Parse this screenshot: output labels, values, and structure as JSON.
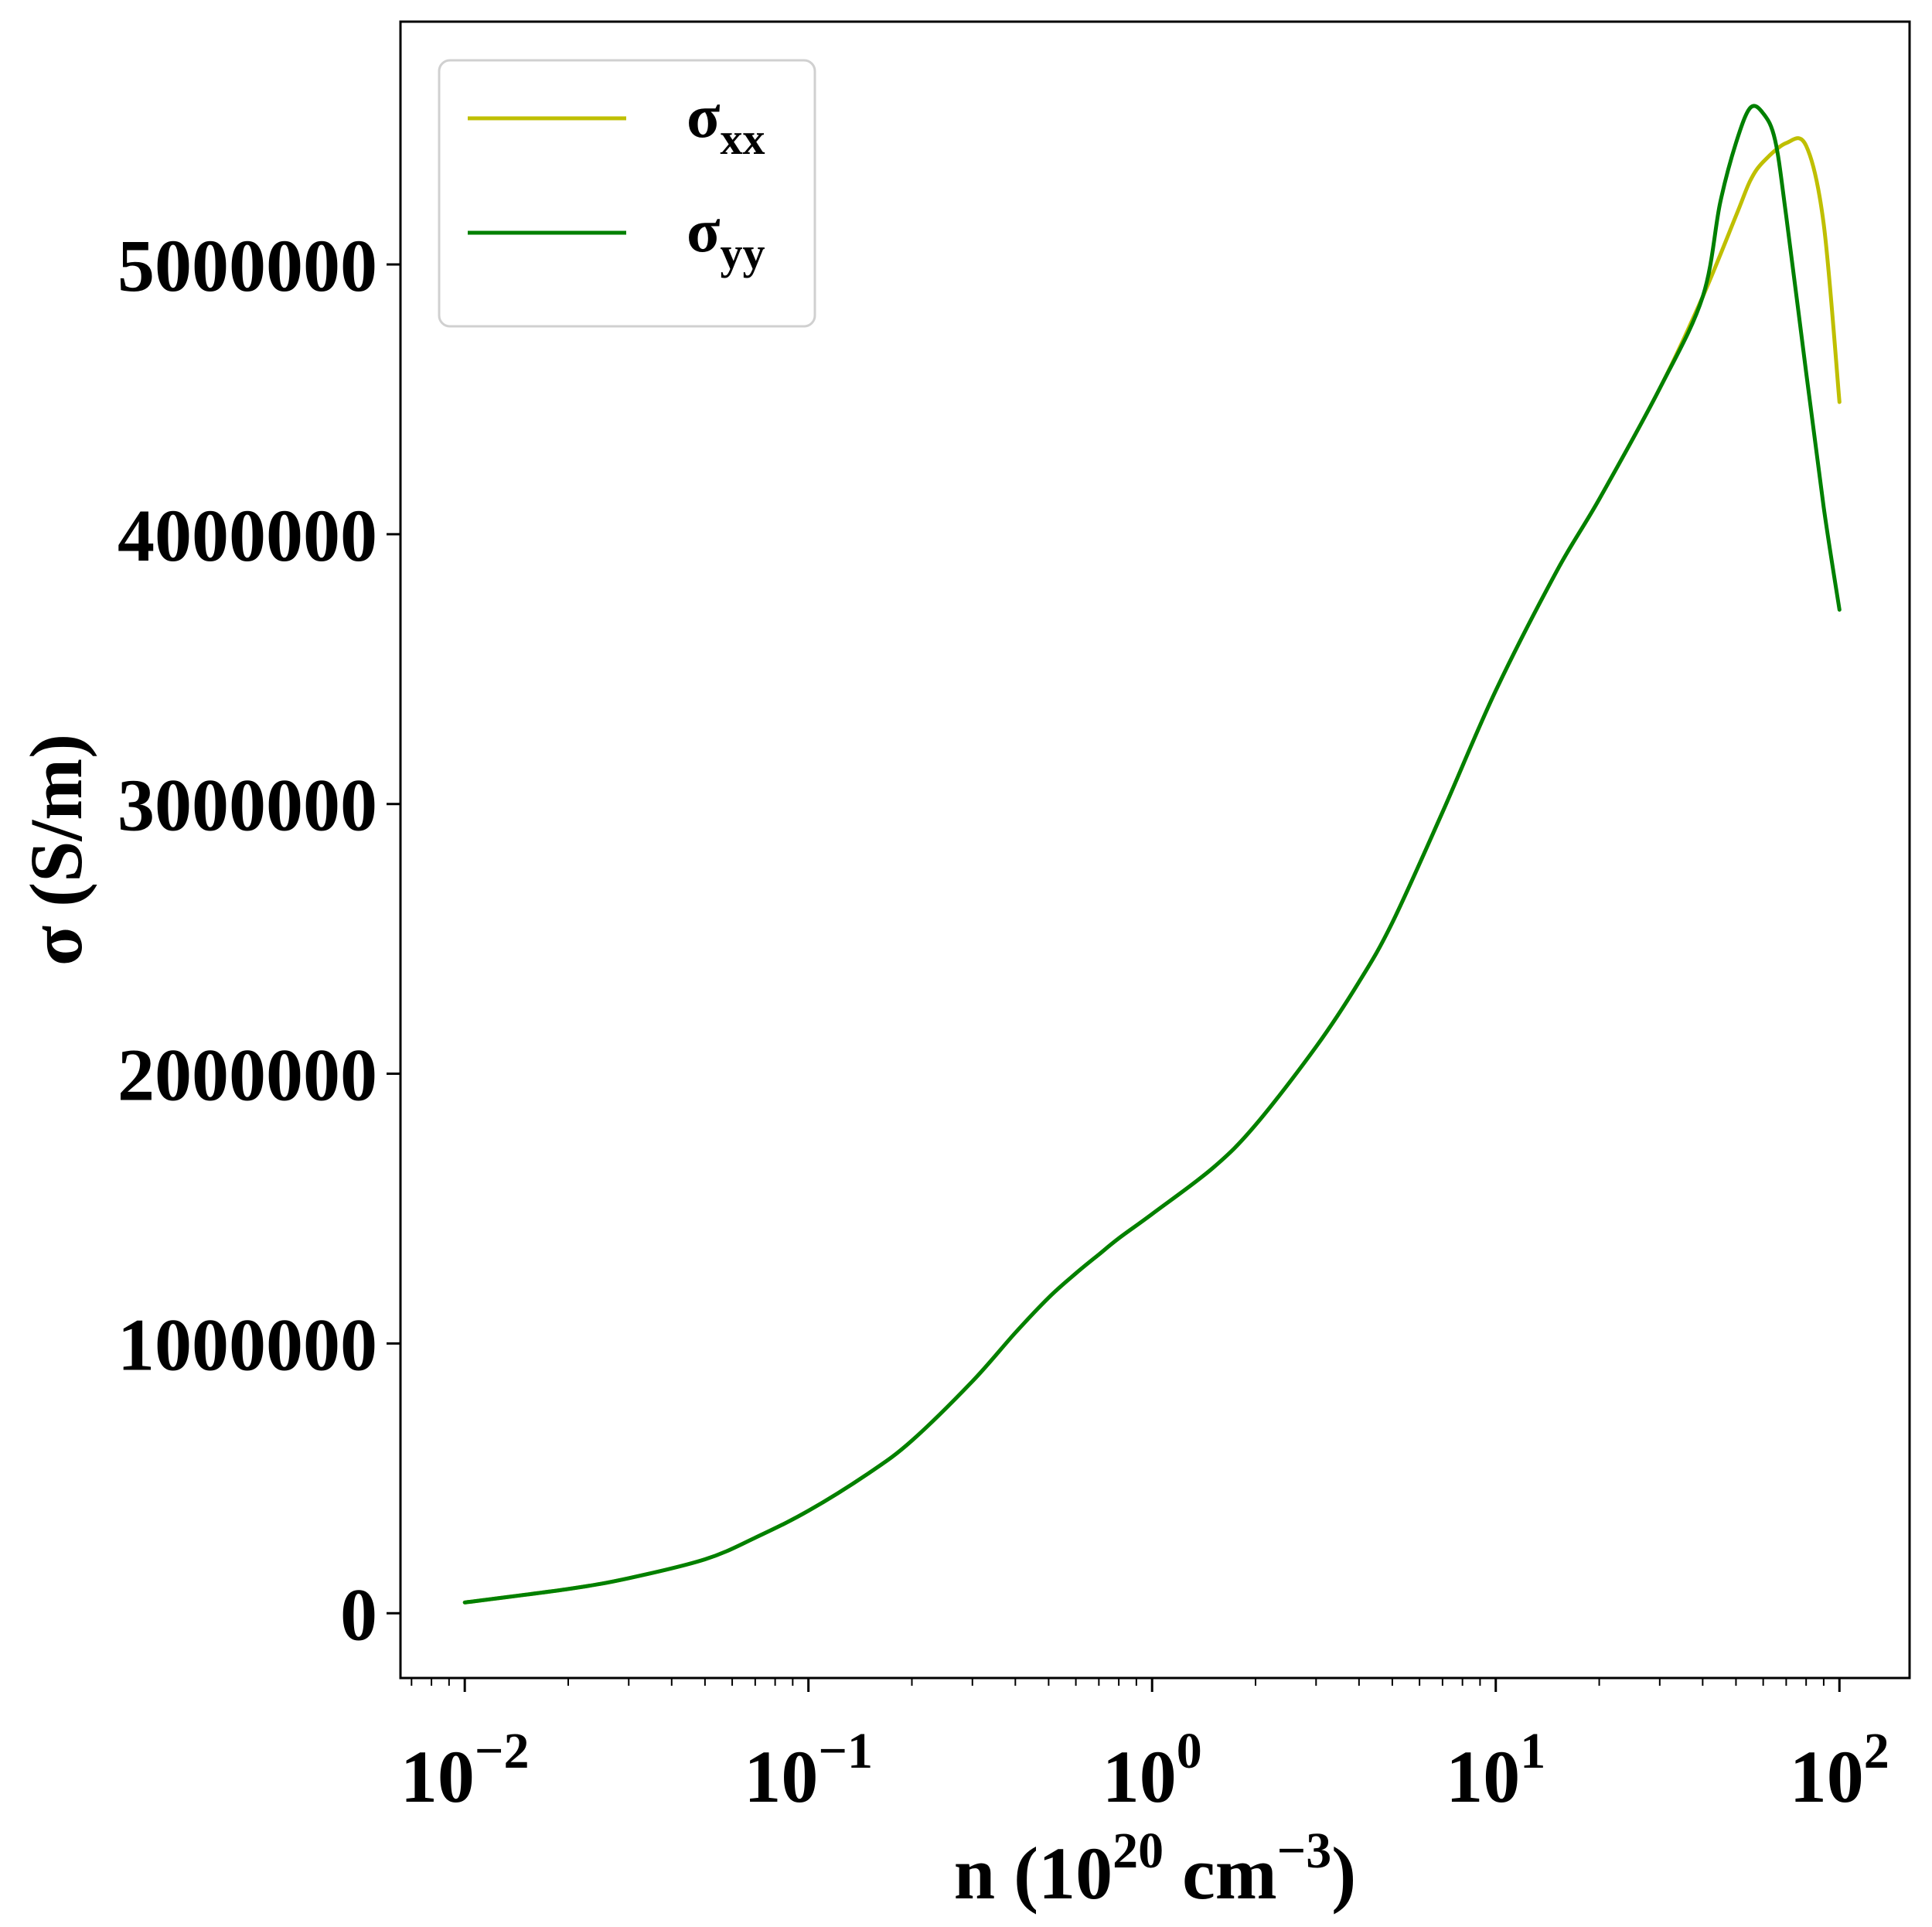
{
  "chart_data": {
    "type": "line",
    "xscale": "log",
    "xlim": [
      0.0065,
      160
    ],
    "ylim": [
      -240000,
      5900000
    ],
    "xlabel": {
      "base": "n (10",
      "sup1": "20",
      "mid": " cm",
      "sup2": "−3",
      "end": ")"
    },
    "ylabel": "σ (S/m)",
    "xticks": [
      {
        "value": 0.01,
        "base": "10",
        "exp": "−2"
      },
      {
        "value": 0.1,
        "base": "10",
        "exp": "−1"
      },
      {
        "value": 1,
        "base": "10",
        "exp": "0"
      },
      {
        "value": 10,
        "base": "10",
        "exp": "1"
      },
      {
        "value": 100,
        "base": "10",
        "exp": "2"
      }
    ],
    "yticks": [
      {
        "value": 0,
        "label": "0"
      },
      {
        "value": 1000000,
        "label": "1000000"
      },
      {
        "value": 2000000,
        "label": "2000000"
      },
      {
        "value": 3000000,
        "label": "3000000"
      },
      {
        "value": 4000000,
        "label": "4000000"
      },
      {
        "value": 5000000,
        "label": "5000000"
      }
    ],
    "grid": false,
    "legend_position": "upper-left",
    "series": [
      {
        "name": "σ",
        "name_sub": "xx",
        "color": "#bfbf00",
        "x": [
          0.01,
          0.02,
          0.03,
          0.05,
          0.07,
          0.1,
          0.15,
          0.2,
          0.3,
          0.4,
          0.5,
          0.6,
          0.7,
          0.8,
          1,
          1.5,
          2,
          3,
          4,
          5,
          7,
          10,
          15,
          20,
          30,
          40,
          50,
          55,
          60,
          70,
          80,
          90,
          100
        ],
        "y": [
          40000,
          90000,
          130000,
          200000,
          280000,
          380000,
          520000,
          640000,
          860000,
          1040000,
          1170000,
          1260000,
          1330000,
          1390000,
          1480000,
          1650000,
          1810000,
          2100000,
          2340000,
          2560000,
          2970000,
          3420000,
          3860000,
          4130000,
          4540000,
          4880000,
          5180000,
          5310000,
          5380000,
          5450000,
          5440000,
          5150000,
          4490000
        ]
      },
      {
        "name": "σ",
        "name_sub": "yy",
        "color": "#008000",
        "x": [
          0.01,
          0.02,
          0.03,
          0.05,
          0.07,
          0.1,
          0.15,
          0.2,
          0.3,
          0.4,
          0.5,
          0.6,
          0.7,
          0.8,
          1,
          1.5,
          2,
          3,
          4,
          5,
          7,
          10,
          15,
          20,
          30,
          40,
          45,
          50,
          55,
          60,
          65,
          70,
          80,
          90,
          100
        ],
        "y": [
          40000,
          90000,
          130000,
          200000,
          280000,
          380000,
          520000,
          640000,
          860000,
          1040000,
          1170000,
          1260000,
          1330000,
          1390000,
          1480000,
          1650000,
          1810000,
          2100000,
          2340000,
          2560000,
          2970000,
          3420000,
          3860000,
          4130000,
          4540000,
          4880000,
          5230000,
          5450000,
          5580000,
          5560000,
          5460000,
          5180000,
          4600000,
          4100000,
          3720000
        ]
      }
    ]
  }
}
